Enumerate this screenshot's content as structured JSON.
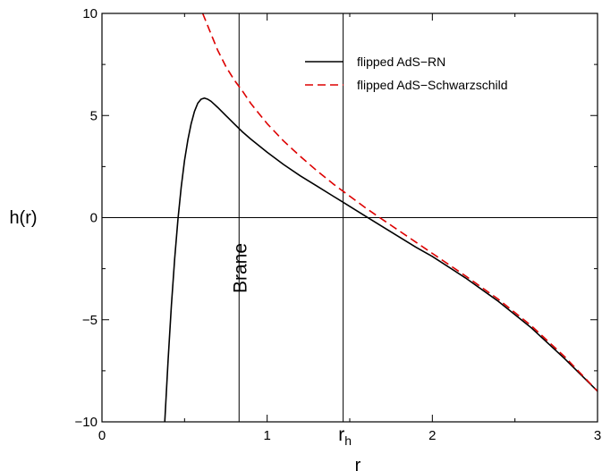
{
  "chart_data": {
    "type": "line",
    "xlabel": "r",
    "ylabel": "h(r)",
    "xlim": [
      0,
      3
    ],
    "ylim": [
      -10,
      10
    ],
    "x_ticks": [
      0,
      1,
      2,
      3
    ],
    "y_ticks": [
      -10,
      -5,
      0,
      5,
      10
    ],
    "grid": false,
    "legend_position": "top-right",
    "series": [
      {
        "name": "flipped AdS−RN",
        "color": "#000000",
        "dash": "solid",
        "x": [
          0.38,
          0.4,
          0.42,
          0.44,
          0.46,
          0.48,
          0.5,
          0.52,
          0.54,
          0.56,
          0.58,
          0.6,
          0.62,
          0.64,
          0.66,
          0.68,
          0.7,
          0.75,
          0.8,
          0.85,
          0.9,
          1.0,
          1.1,
          1.2,
          1.3,
          1.4,
          1.5,
          1.6,
          1.7,
          1.8,
          1.9,
          2.0,
          2.2,
          2.4,
          2.6,
          2.8,
          3.0
        ],
        "y": [
          -10.0,
          -7.0,
          -4.3,
          -2.0,
          -0.1,
          1.5,
          2.8,
          3.8,
          4.6,
          5.2,
          5.6,
          5.8,
          5.85,
          5.8,
          5.7,
          5.55,
          5.4,
          5.0,
          4.6,
          4.2,
          3.85,
          3.2,
          2.6,
          2.05,
          1.55,
          1.05,
          0.55,
          0.05,
          -0.45,
          -0.95,
          -1.45,
          -1.9,
          -2.95,
          -4.1,
          -5.4,
          -6.9,
          -8.5
        ]
      },
      {
        "name": "flipped AdS−Schwarzschild",
        "color": "#dd0000",
        "dash": "dashed",
        "x": [
          0.61,
          0.65,
          0.7,
          0.75,
          0.8,
          0.85,
          0.9,
          0.95,
          1.0,
          1.1,
          1.2,
          1.3,
          1.4,
          1.5,
          1.6,
          1.7,
          1.8,
          1.9,
          2.0,
          2.2,
          2.4,
          2.6,
          2.8,
          3.0
        ],
        "y": [
          10.0,
          9.2,
          8.2,
          7.4,
          6.75,
          6.2,
          5.6,
          5.1,
          4.6,
          3.75,
          3.0,
          2.3,
          1.65,
          1.05,
          0.45,
          -0.1,
          -0.65,
          -1.2,
          -1.75,
          -2.85,
          -4.0,
          -5.3,
          -6.8,
          -8.5
        ]
      }
    ],
    "vlines": [
      0.83,
      1.46
    ],
    "hlines": [
      0
    ],
    "annotations": {
      "brane": {
        "text": "Brane",
        "x": 0.83
      },
      "rh_main": "r",
      "rh_sub": "h",
      "rh_x": 1.46
    }
  }
}
